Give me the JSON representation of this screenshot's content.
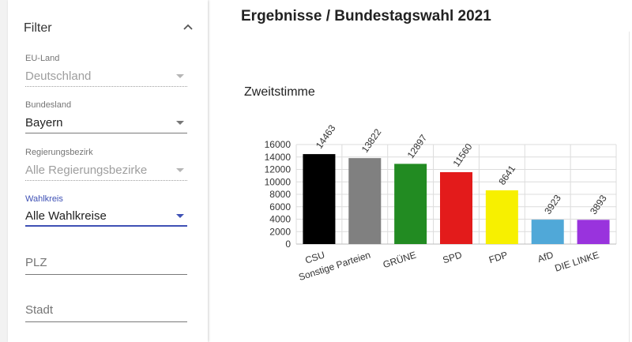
{
  "page_title": "Ergebnisse / Bundestagswahl 2021",
  "filter": {
    "title": "Filter",
    "fields": {
      "eu_land": {
        "label": "EU-Land",
        "value": "Deutschland"
      },
      "bundesland": {
        "label": "Bundesland",
        "value": "Bayern"
      },
      "regierungsbezirk": {
        "label": "Regierungsbezirk",
        "value": "Alle Regierungsbezirke"
      },
      "wahlkreis": {
        "label": "Wahlkreis",
        "value": "Alle Wahlkreise"
      },
      "plz": {
        "placeholder": "PLZ"
      },
      "stadt": {
        "placeholder": "Stadt"
      }
    },
    "accent_color": "#3f51b5"
  },
  "chart_data": {
    "type": "bar",
    "title": "Zweitstimme",
    "categories": [
      "CSU",
      "Sonstige Parteien",
      "GRÜNE",
      "SPD",
      "FDP",
      "AfD",
      "DIE LINKE"
    ],
    "values": [
      14463,
      13822,
      12897,
      11560,
      8641,
      3923,
      3893
    ],
    "colors": [
      "#000000",
      "#808080",
      "#228b22",
      "#e31b1b",
      "#f7f000",
      "#50a8d8",
      "#9933dd"
    ],
    "yticks": [
      0,
      2000,
      4000,
      6000,
      8000,
      10000,
      12000,
      14000,
      16000
    ],
    "ylim": [
      0,
      16000
    ],
    "grid": true,
    "xlabel": "",
    "ylabel": ""
  }
}
